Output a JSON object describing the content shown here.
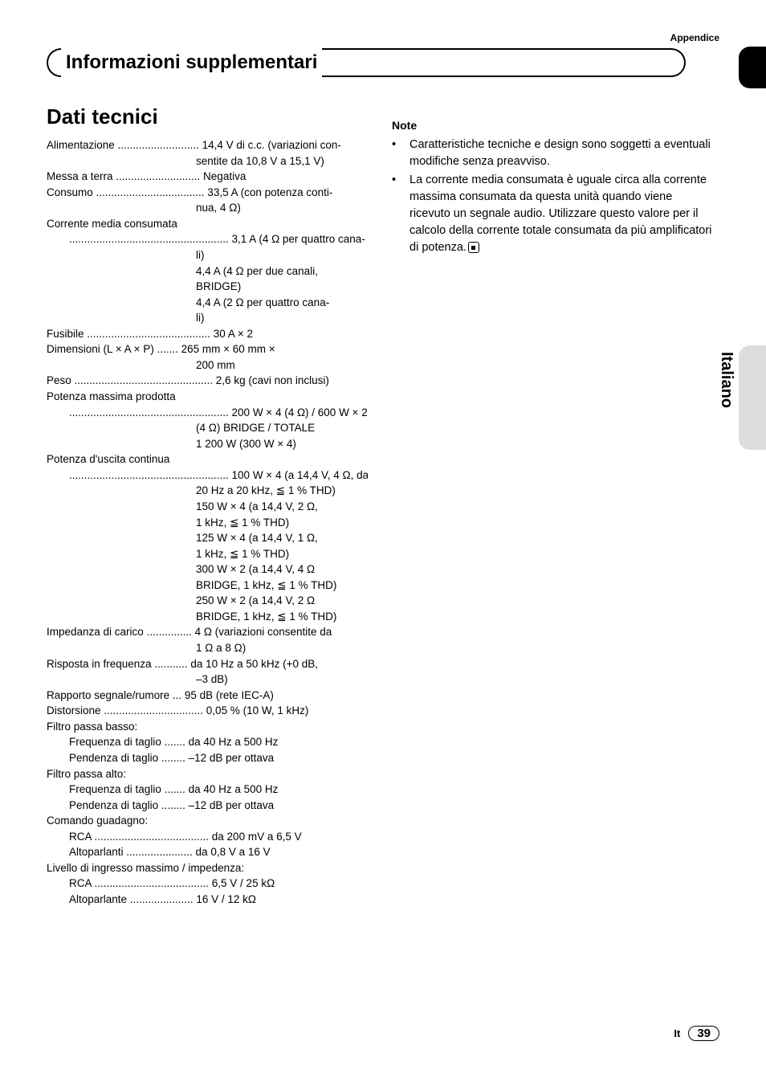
{
  "header": {
    "appendix": "Appendice",
    "title": "Informazioni supplementari"
  },
  "side_tab": {
    "label": "Italiano"
  },
  "section": {
    "title": "Dati tecnici"
  },
  "specs": [
    {
      "label": "Alimentazione",
      "dots": " ...........................",
      "value": "14,4 V di c.c. (variazioni con-",
      "cont": [
        "sentite da 10,8 V a 15,1 V)"
      ]
    },
    {
      "label": "Messa a terra",
      "dots": " ............................",
      "value": "Negativa"
    },
    {
      "label": "Consumo",
      "dots": " ....................................",
      "value": "33,5 A (con potenza conti-",
      "cont": [
        "nua, 4 Ω)"
      ]
    },
    {
      "label": "Corrente media consumata",
      "plain": true
    },
    {
      "indent": 1,
      "label": "",
      "dots": ".....................................................",
      "value": "3,1 A (4 Ω per quattro cana-",
      "cont": [
        "li)",
        "4,4 A (4 Ω per due canali,",
        "BRIDGE)",
        "4,4 A (2 Ω per quattro cana-",
        "li)"
      ]
    },
    {
      "label": "Fusibile",
      "dots": " .........................................",
      "value": "30 A × 2"
    },
    {
      "label": "Dimensioni (L × A × P)",
      "dots": " .......",
      "value": "265 mm × 60 mm ×",
      "cont": [
        "200 mm"
      ]
    },
    {
      "label": "Peso",
      "dots": " ..............................................",
      "value": "2,6 kg (cavi non inclusi)"
    },
    {
      "label": "Potenza massima prodotta",
      "plain": true
    },
    {
      "indent": 1,
      "label": "",
      "dots": ".....................................................",
      "value": "200 W × 4 (4 Ω) / 600 W × 2",
      "cont": [
        "(4 Ω) BRIDGE / TOTALE",
        "1 200 W (300 W × 4)"
      ]
    },
    {
      "label": "Potenza d'uscita continua",
      "plain": true
    },
    {
      "indent": 1,
      "label": "",
      "dots": ".....................................................",
      "value": "100 W × 4 (a 14,4 V, 4 Ω, da",
      "cont": [
        "20 Hz a 20 kHz, ≦ 1 % THD)",
        "150 W × 4 (a 14,4 V, 2 Ω,",
        "1 kHz, ≦ 1 % THD)",
        "125 W × 4 (a 14,4 V, 1 Ω,",
        "1 kHz, ≦ 1 % THD)",
        "300 W × 2 (a 14,4 V, 4 Ω",
        "BRIDGE, 1 kHz, ≦ 1 % THD)",
        "250 W × 2 (a 14,4 V, 2 Ω",
        "BRIDGE, 1 kHz, ≦ 1 % THD)"
      ]
    },
    {
      "label": "Impedanza di carico",
      "dots": " ...............",
      "value": "4 Ω (variazioni consentite da",
      "cont": [
        "1 Ω a 8 Ω)"
      ]
    },
    {
      "label": "Risposta in frequenza",
      "dots": " ...........",
      "value": "da 10 Hz a 50 kHz (+0 dB,",
      "cont": [
        "–3 dB)"
      ]
    },
    {
      "label": "Rapporto segnale/rumore",
      "dots": " ...",
      "value": "95 dB (rete IEC-A)"
    },
    {
      "label": "Distorsione",
      "dots": " .................................",
      "value": "0,05 % (10 W, 1 kHz)"
    },
    {
      "label": "Filtro passa basso:",
      "plain": true
    },
    {
      "indent": 1,
      "label": "Frequenza di taglio",
      "dots": " .......",
      "value": "da 40 Hz a 500 Hz"
    },
    {
      "indent": 1,
      "label": "Pendenza di taglio",
      "dots": " ........",
      "value": "–12 dB per ottava"
    },
    {
      "label": "Filtro passa alto:",
      "plain": true
    },
    {
      "indent": 1,
      "label": "Frequenza di taglio",
      "dots": " .......",
      "value": "da 40 Hz a 500 Hz"
    },
    {
      "indent": 1,
      "label": "Pendenza di taglio",
      "dots": " ........",
      "value": "–12 dB per ottava"
    },
    {
      "label": "Comando guadagno:",
      "plain": true
    },
    {
      "indent": 1,
      "label": "RCA",
      "dots": " ......................................",
      "value": "da 200 mV a 6,5 V"
    },
    {
      "indent": 1,
      "label": "Altoparlanti",
      "dots": " ......................",
      "value": "da 0,8 V a 16 V"
    },
    {
      "label": "Livello di ingresso massimo / impedenza:",
      "plain": true
    },
    {
      "indent": 1,
      "label": "RCA",
      "dots": " ......................................",
      "value": "6,5 V / 25 kΩ"
    },
    {
      "indent": 1,
      "label": "Altoparlante",
      "dots": " .....................",
      "value": "16 V / 12 kΩ"
    }
  ],
  "notes": {
    "title": "Note",
    "items": [
      "Caratteristiche tecniche e design sono soggetti a eventuali modifiche senza preavviso.",
      "La corrente media consumata è uguale circa alla corrente massima consumata da questa unità quando viene ricevuto un segnale audio. Utilizzare questo valore per il calcolo della corrente totale consumata da più amplificatori di potenza."
    ]
  },
  "footer": {
    "lang": "It",
    "page": "39"
  },
  "colors": {
    "text": "#000000",
    "background": "#ffffff",
    "tab_gray": "#dddddd"
  },
  "typography": {
    "body_fontsize": 13.5,
    "title_fontsize": 26,
    "header_fontsize": 24,
    "note_fontsize": 14.5
  }
}
